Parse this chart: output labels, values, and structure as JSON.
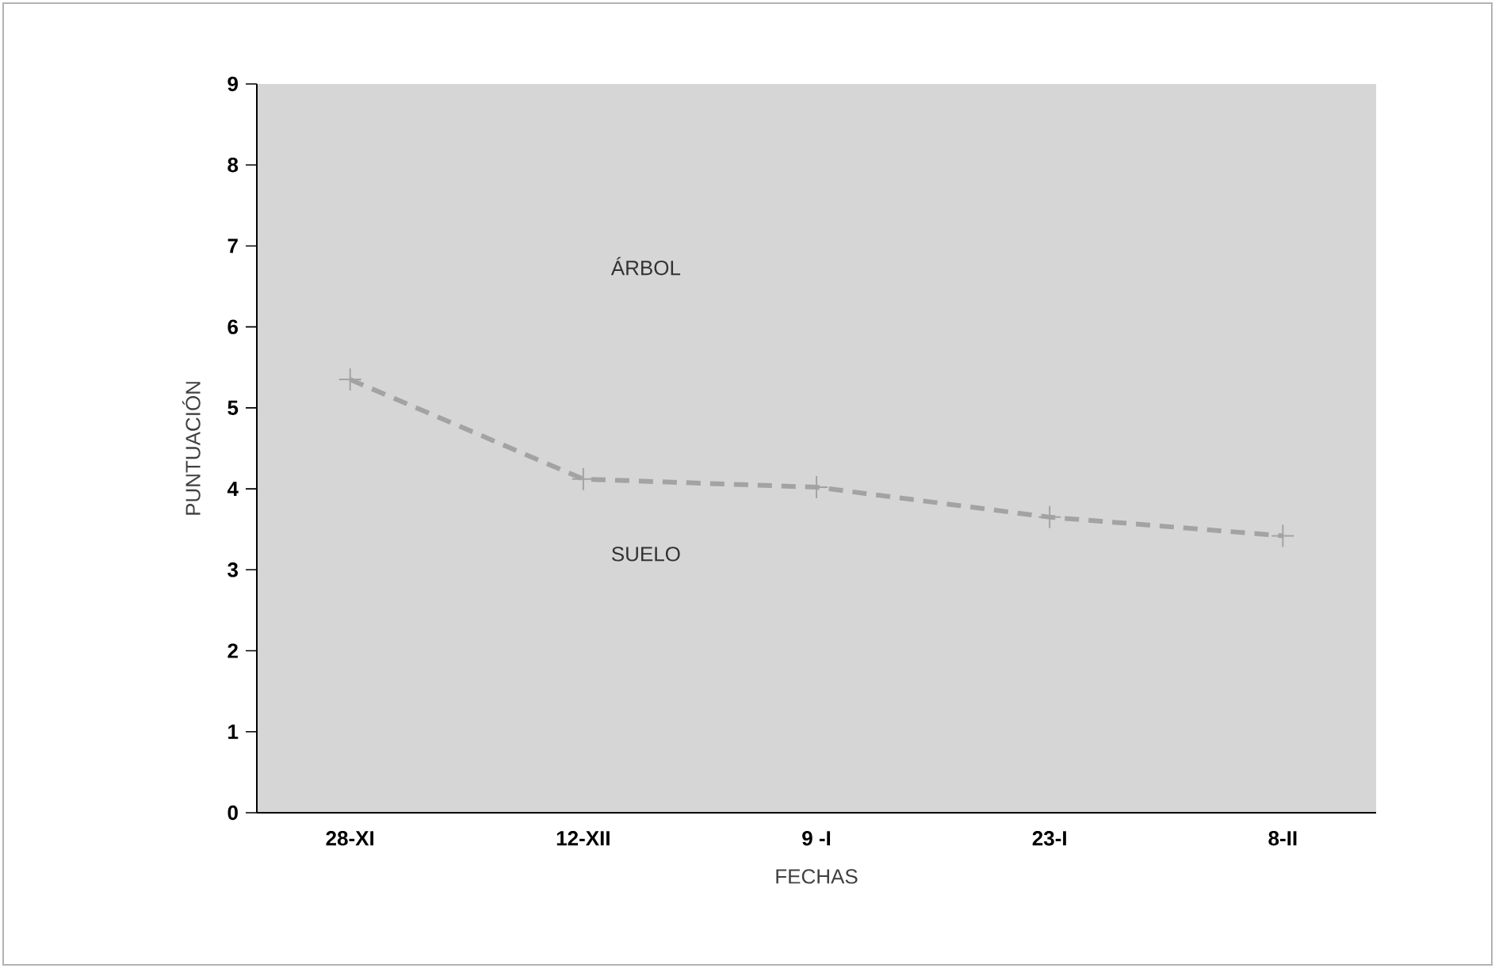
{
  "chart_data": {
    "type": "line",
    "xlabel": "FECHAS",
    "ylabel": "PUNTUACIÓN",
    "categories": [
      "28-XI",
      "12-XII",
      "9 -I",
      "23-I",
      "8-II"
    ],
    "series": [
      {
        "color": "#a3a3a3",
        "values": [
          5.35,
          4.12,
          4.02,
          3.65,
          3.42
        ]
      }
    ],
    "ylim": [
      0,
      9
    ],
    "yticks": [
      0,
      1,
      2,
      3,
      4,
      5,
      6,
      7,
      8,
      9
    ],
    "marker": "cross",
    "line_style": "dashed",
    "annotations": [
      "ÁRBOL",
      "SUELO"
    ]
  }
}
